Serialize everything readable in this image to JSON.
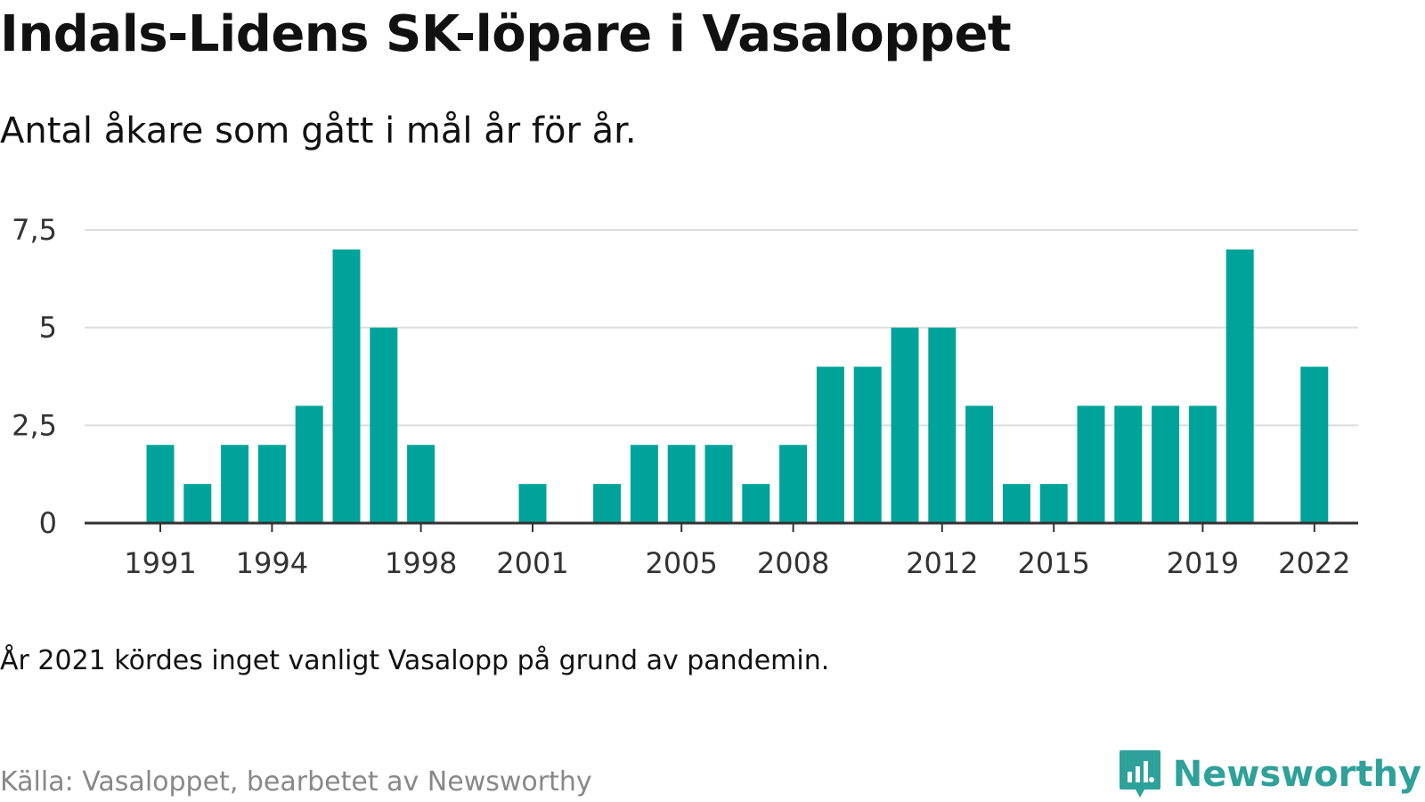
{
  "title": "Indals-Lidens SK-löpare i Vasaloppet",
  "subtitle": "Antal åkare som gått i mål år för år.",
  "note": "År 2021 kördes inget vanligt Vasalopp på grund av pandemin.",
  "source": "Källa: Vasaloppet, bearbetet av Newsworthy",
  "brand": {
    "name": "Newsworthy",
    "icon": "newsworthy-logo-icon",
    "color": "#2ea19a"
  },
  "chart_data": {
    "type": "bar",
    "categories": [
      1991,
      1992,
      1993,
      1994,
      1995,
      1996,
      1997,
      1998,
      1999,
      2000,
      2001,
      2002,
      2003,
      2004,
      2005,
      2006,
      2007,
      2008,
      2009,
      2010,
      2011,
      2012,
      2013,
      2014,
      2015,
      2016,
      2017,
      2018,
      2019,
      2020,
      2021,
      2022
    ],
    "values": [
      2,
      1,
      2,
      2,
      3,
      7,
      5,
      2,
      0,
      0,
      1,
      0,
      1,
      2,
      2,
      2,
      1,
      2,
      4,
      4,
      5,
      5,
      3,
      1,
      1,
      3,
      3,
      3,
      3,
      7,
      0,
      4
    ],
    "x_tick_labels": [
      "1991",
      "1994",
      "1998",
      "2001",
      "2005",
      "2008",
      "2012",
      "2015",
      "2019",
      "2022"
    ],
    "y_ticks": [
      0,
      2.5,
      5,
      7.5
    ],
    "y_tick_labels": [
      "0",
      "2,5",
      "5",
      "7,5"
    ],
    "ylim": [
      0,
      7.5
    ],
    "bar_color": "#00a39a",
    "grid": true
  }
}
